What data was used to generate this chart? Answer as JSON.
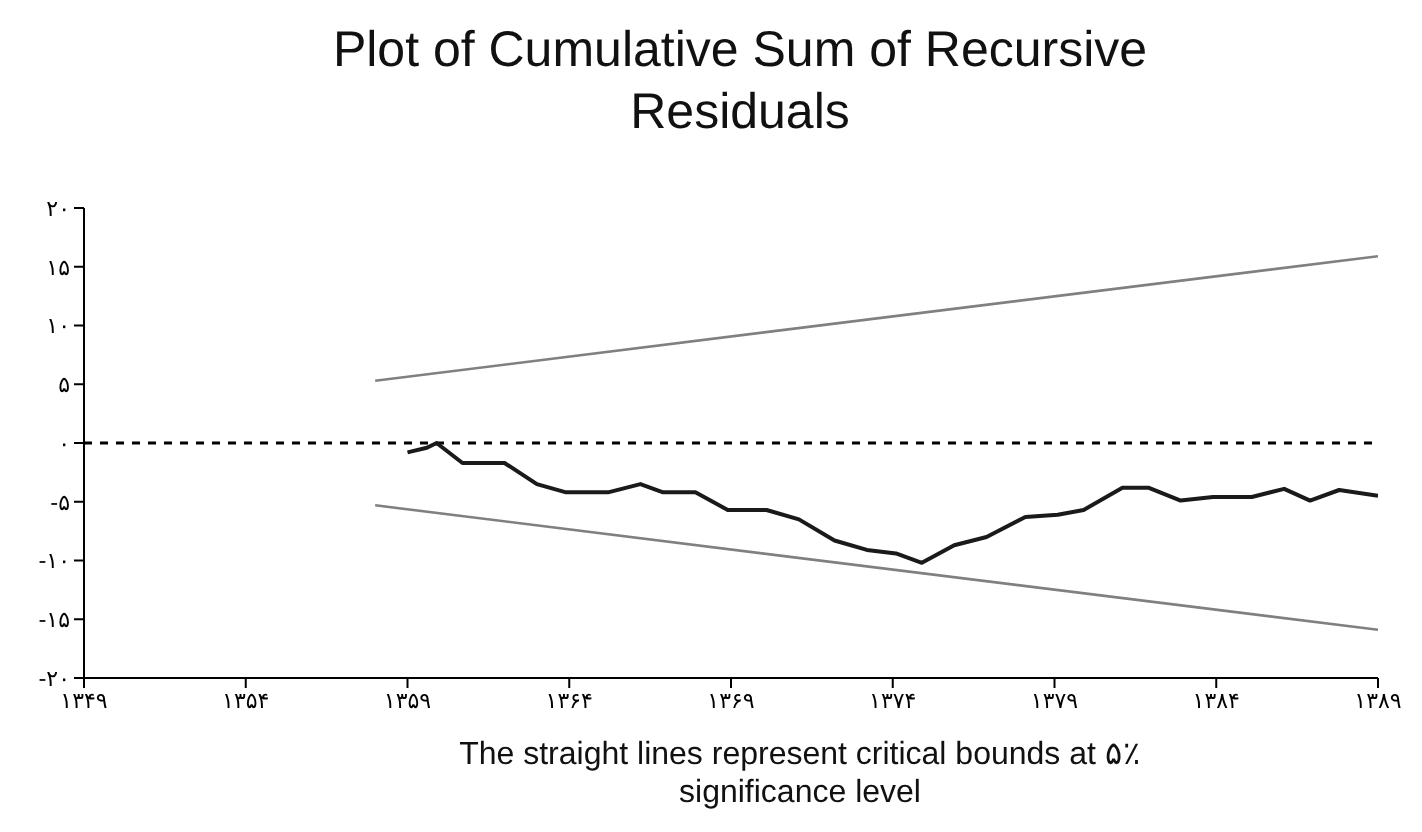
{
  "chart_data": {
    "type": "line",
    "title": "Plot of Cumulative Sum of Recursive Residuals",
    "annotations": [
      "The straight lines represent critical bounds at ۵٪ significance level"
    ],
    "series": [
      {
        "color": "#1a1a1a",
        "x": [
          1359.0,
          1359.6,
          1359.9,
          1360.7,
          1362.0,
          1363.0,
          1363.9,
          1365.2,
          1366.2,
          1366.9,
          1367.9,
          1368.9,
          1370.1,
          1371.1,
          1372.2,
          1373.2,
          1374.1,
          1374.9,
          1375.9,
          1376.9,
          1378.1,
          1379.1,
          1379.9,
          1381.1,
          1381.9,
          1382.9,
          1383.9,
          1385.1,
          1386.1,
          1386.9,
          1387.8,
          1389.0
        ],
        "values": [
          -0.8,
          -0.4,
          0,
          -1.7,
          -1.7,
          -3.5,
          -4.2,
          -4.2,
          -3.5,
          -4.2,
          -4.2,
          -5.7,
          -5.7,
          -6.5,
          -8.3,
          -9.1,
          -9.4,
          -10.2,
          -8.7,
          -8.0,
          -6.3,
          -6.1,
          -5.7,
          -3.8,
          -3.8,
          -4.9,
          -4.6,
          -4.6,
          -3.9,
          -4.9,
          -4.0,
          -4.5
        ]
      },
      {
        "color": "#808080",
        "x": [
          1358,
          1389
        ],
        "values": [
          5.3,
          15.9
        ]
      },
      {
        "color": "#808080",
        "x": [
          1358,
          1389
        ],
        "values": [
          -5.3,
          -15.9
        ]
      }
    ],
    "xlim": [
      1349,
      1389
    ],
    "xticks": [
      {
        "value": 1349,
        "label": "۱۳۴۹"
      },
      {
        "value": 1354,
        "label": "۱۳۵۴"
      },
      {
        "value": 1359,
        "label": "۱۳۵۹"
      },
      {
        "value": 1364,
        "label": "۱۳۶۴"
      },
      {
        "value": 1369,
        "label": "۱۳۶۹"
      },
      {
        "value": 1374,
        "label": "۱۳۷۴"
      },
      {
        "value": 1379,
        "label": "۱۳۷۹"
      },
      {
        "value": 1384,
        "label": "۱۳۸۴"
      },
      {
        "value": 1389,
        "label": "۱۳۸۹"
      }
    ],
    "ylim": [
      -20,
      20
    ],
    "yticks": [
      {
        "value": -20,
        "label": "-۲۰"
      },
      {
        "value": -15,
        "label": "-۱۵"
      },
      {
        "value": -10,
        "label": "-۱۰"
      },
      {
        "value": -5,
        "label": "-۵"
      },
      {
        "value": 0,
        "label": "۰"
      },
      {
        "value": 5,
        "label": "۵"
      },
      {
        "value": 10,
        "label": "۱۰"
      },
      {
        "value": 15,
        "label": "۱۵"
      },
      {
        "value": 20,
        "label": "۲۰"
      }
    ],
    "ref_lines": [
      {
        "axis": "y",
        "value": 0,
        "color": "#000000",
        "line_style": "dashed"
      }
    ],
    "grid": false,
    "marker": "none",
    "line_style": "solid"
  }
}
